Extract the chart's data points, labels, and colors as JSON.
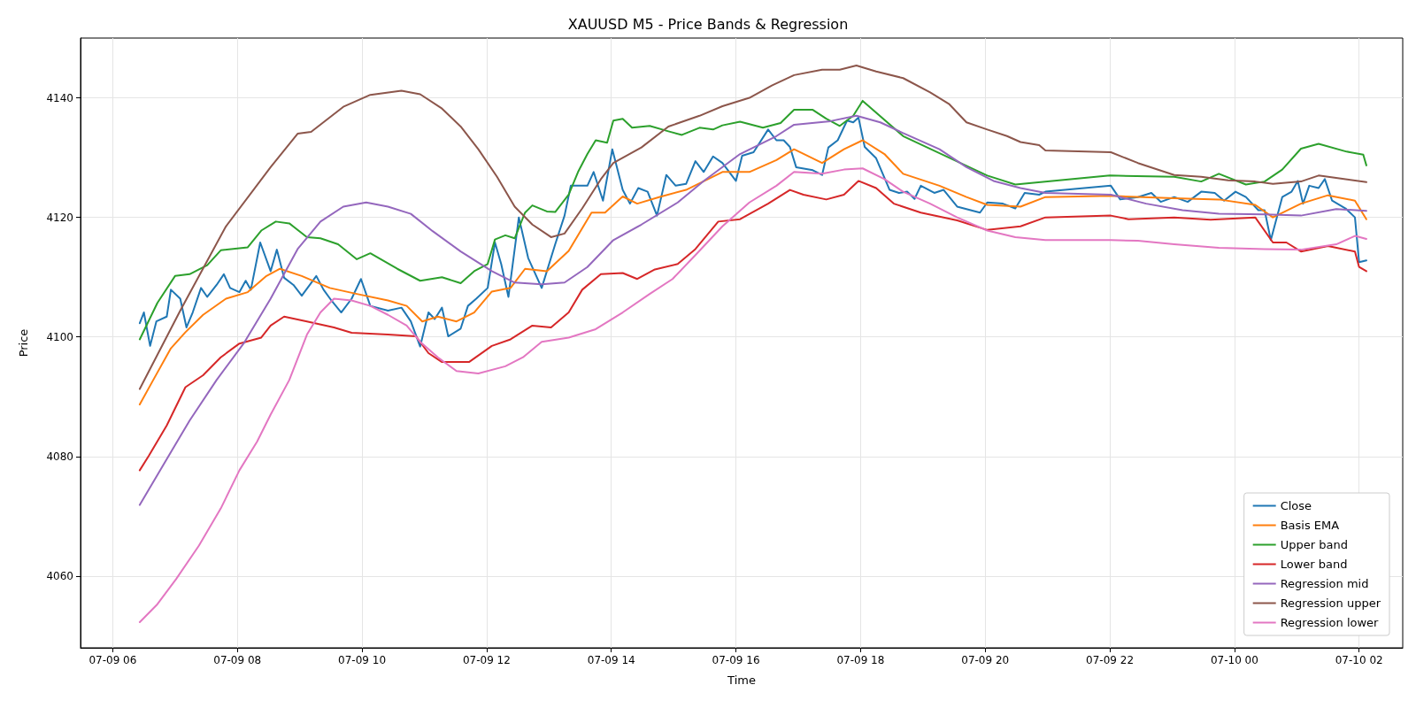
{
  "chart_data": {
    "type": "line",
    "title": "XAUUSD M5 - Price Bands & Regression",
    "xlabel": "Time",
    "ylabel": "Price",
    "xlim": [
      "--07-09T05:29",
      "--07-10T02:42"
    ],
    "xticks": [
      {
        "value": "--07-09T06:00",
        "label": "07-09 06"
      },
      {
        "value": "--07-09T08:00",
        "label": "07-09 08"
      },
      {
        "value": "--07-09T10:00",
        "label": "07-09 10"
      },
      {
        "value": "--07-09T12:00",
        "label": "07-09 12"
      },
      {
        "value": "--07-09T14:00",
        "label": "07-09 14"
      },
      {
        "value": "--07-09T16:00",
        "label": "07-09 16"
      },
      {
        "value": "--07-09T18:00",
        "label": "07-09 18"
      },
      {
        "value": "--07-09T20:00",
        "label": "07-09 20"
      },
      {
        "value": "--07-09T22:00",
        "label": "07-09 22"
      },
      {
        "value": "--07-10T00:00",
        "label": "07-10 00"
      },
      {
        "value": "--07-10T02:00",
        "label": "07-10 02"
      }
    ],
    "ylim": [
      4048,
      4150
    ],
    "yticks": [
      4060,
      4080,
      4100,
      4120,
      4140
    ],
    "grid": true,
    "legend": "bottom right",
    "series": [
      {
        "name": "Close",
        "color": "#1f77b4",
        "x": [
          "--07-09T06:26",
          "--07-09T06:30",
          "--07-09T06:36",
          "--07-09T06:42",
          "--07-09T06:52",
          "--07-09T06:56",
          "--07-09T07:05",
          "--07-09T07:11",
          "--07-09T07:17",
          "--07-09T07:25",
          "--07-09T07:31",
          "--07-09T07:40",
          "--07-09T07:47",
          "--07-09T07:53",
          "--07-09T08:02",
          "--07-09T08:08",
          "--07-09T08:13",
          "--07-09T08:22",
          "--07-09T08:32",
          "--07-09T08:38",
          "--07-09T08:45",
          "--07-09T08:54",
          "--07-09T09:02",
          "--07-09T09:16",
          "--07-09T09:23",
          "--07-09T09:31",
          "--07-09T09:40",
          "--07-09T09:50",
          "--07-09T09:59",
          "--07-09T10:08",
          "--07-09T10:25",
          "--07-09T10:38",
          "--07-09T10:47",
          "--07-09T10:56",
          "--07-09T11:04",
          "--07-09T11:10",
          "--07-09T11:17",
          "--07-09T11:23",
          "--07-09T11:35",
          "--07-09T11:42",
          "--07-09T11:50",
          "--07-09T12:01",
          "--07-09T12:08",
          "--07-09T12:14",
          "--07-09T12:21",
          "--07-09T12:31",
          "--07-09T12:40",
          "--07-09T12:53",
          "--07-09T13:06",
          "--07-09T13:15",
          "--07-09T13:21",
          "--07-09T13:37",
          "--07-09T13:43",
          "--07-09T13:52",
          "--07-09T14:01",
          "--07-09T14:11",
          "--07-09T14:18",
          "--07-09T14:26",
          "--07-09T14:35",
          "--07-09T14:44",
          "--07-09T14:53",
          "--07-09T15:02",
          "--07-09T15:12",
          "--07-09T15:21",
          "--07-09T15:29",
          "--07-09T15:38",
          "--07-09T15:47",
          "--07-09T16:00",
          "--07-09T16:06",
          "--07-09T16:17",
          "--07-09T16:31",
          "--07-09T16:39",
          "--07-09T16:46",
          "--07-09T16:52",
          "--07-09T16:58",
          "--07-09T17:14",
          "--07-09T17:23",
          "--07-09T17:29",
          "--07-09T17:38",
          "--07-09T17:47",
          "--07-09T17:53",
          "--07-09T17:58",
          "--07-09T18:04",
          "--07-09T18:15",
          "--07-09T18:28",
          "--07-09T18:37",
          "--07-09T18:45",
          "--07-09T18:52",
          "--07-09T18:58",
          "--07-09T19:11",
          "--07-09T19:20",
          "--07-09T19:33",
          "--07-09T19:46",
          "--07-09T19:55",
          "--07-09T20:02",
          "--07-09T20:17",
          "--07-09T20:29",
          "--07-09T20:38",
          "--07-09T20:52",
          "--07-09T20:58",
          "--07-09T22:01",
          "--07-09T22:10",
          "--07-09T22:27",
          "--07-09T22:40",
          "--07-09T22:49",
          "--07-09T23:02",
          "--07-09T23:15",
          "--07-09T23:28",
          "--07-09T23:41",
          "--07-09T23:50",
          "--07-10T00:01",
          "--07-10T00:11",
          "--07-10T00:23",
          "--07-10T00:29",
          "--07-10T00:35",
          "--07-10T00:46",
          "--07-10T00:55",
          "--07-10T01:01",
          "--07-10T01:06",
          "--07-10T01:12",
          "--07-10T01:21",
          "--07-10T01:27",
          "--07-10T01:34",
          "--07-10T01:47",
          "--07-10T01:56",
          "--07-10T02:00",
          "--07-10T02:07"
        ],
        "values": [
          4102.3,
          4104.1,
          4098.5,
          4102.6,
          4103.4,
          4107.9,
          4106.4,
          4101.6,
          4104.1,
          4108.2,
          4106.7,
          4108.7,
          4110.5,
          4108.2,
          4107.5,
          4109.4,
          4107.9,
          4115.8,
          4111.0,
          4114.6,
          4109.9,
          4108.7,
          4106.9,
          4110.2,
          4107.9,
          4106.0,
          4104.1,
          4106.4,
          4109.7,
          4105.2,
          4104.4,
          4104.9,
          4102.6,
          4098.4,
          4104.1,
          4103.0,
          4104.9,
          4100.1,
          4101.4,
          4105.2,
          4106.4,
          4108.2,
          4115.8,
          4112.2,
          4106.7,
          4120.0,
          4113.2,
          4108.2,
          4115.5,
          4120.3,
          4125.3,
          4125.3,
          4127.6,
          4122.8,
          4131.4,
          4124.6,
          4122.3,
          4124.9,
          4124.3,
          4120.3,
          4127.1,
          4125.3,
          4125.6,
          4129.4,
          4127.6,
          4130.2,
          4129.1,
          4126.1,
          4130.3,
          4130.9,
          4134.7,
          4132.9,
          4132.9,
          4131.8,
          4128.4,
          4127.9,
          4127.1,
          4131.7,
          4132.9,
          4136.2,
          4135.9,
          4136.7,
          4131.8,
          4129.9,
          4124.6,
          4124.1,
          4124.3,
          4123.1,
          4125.3,
          4124.1,
          4124.6,
          4121.8,
          4121.2,
          4120.8,
          4122.5,
          4122.3,
          4121.5,
          4124.1,
          4123.8,
          4124.3,
          4125.3,
          4123.0,
          4123.4,
          4124.1,
          4122.6,
          4123.4,
          4122.6,
          4124.3,
          4124.1,
          4122.8,
          4124.3,
          4123.4,
          4121.2,
          4121.2,
          4116.2,
          4123.4,
          4124.3,
          4126.1,
          4122.3,
          4125.3,
          4124.9,
          4126.4,
          4122.8,
          4121.5,
          4120.0,
          4112.5,
          4112.8
        ]
      },
      {
        "name": "Basis EMA",
        "color": "#ff7f0e",
        "x": [
          "--07-09T06:26",
          "--07-09T06:39",
          "--07-09T06:56",
          "--07-09T07:10",
          "--07-09T07:27",
          "--07-09T07:49",
          "--07-09T08:10",
          "--07-09T08:28",
          "--07-09T08:41",
          "--07-09T09:02",
          "--07-09T09:29",
          "--07-09T09:55",
          "--07-09T10:25",
          "--07-09T10:43",
          "--07-09T10:58",
          "--07-09T11:13",
          "--07-09T11:31",
          "--07-09T11:48",
          "--07-09T12:05",
          "--07-09T12:23",
          "--07-09T12:37",
          "--07-09T12:58",
          "--07-09T13:19",
          "--07-09T13:41",
          "--07-09T13:54",
          "--07-09T14:11",
          "--07-09T14:25",
          "--07-09T14:46",
          "--07-09T15:12",
          "--07-09T15:47",
          "--07-09T16:13",
          "--07-09T16:39",
          "--07-09T16:56",
          "--07-09T17:23",
          "--07-09T17:44",
          "--07-09T18:02",
          "--07-09T18:23",
          "--07-09T18:41",
          "--07-09T19:16",
          "--07-09T19:42",
          "--07-09T20:02",
          "--07-09T20:34",
          "--07-09T20:58",
          "--07-09T22:01",
          "--07-09T23:02",
          "--07-09T23:45",
          "--07-10T00:20",
          "--07-10T00:37",
          "--07-10T01:04",
          "--07-10T01:30",
          "--07-10T01:56",
          "--07-10T02:07"
        ],
        "values": [
          4088.7,
          4092.8,
          4098.1,
          4100.8,
          4103.7,
          4106.4,
          4107.5,
          4110.2,
          4111.4,
          4110.2,
          4108.2,
          4107.2,
          4106.1,
          4105.2,
          4102.6,
          4103.4,
          4102.6,
          4104.1,
          4107.6,
          4108.2,
          4111.4,
          4111.0,
          4114.4,
          4120.8,
          4120.8,
          4123.5,
          4122.3,
          4123.4,
          4124.6,
          4127.6,
          4127.6,
          4129.6,
          4131.4,
          4129.1,
          4131.4,
          4132.9,
          4130.6,
          4127.3,
          4125.3,
          4123.4,
          4122.1,
          4121.8,
          4123.4,
          4123.6,
          4123.2,
          4123.0,
          4122.1,
          4120.0,
          4122.3,
          4123.7,
          4122.8,
          4119.7
        ]
      },
      {
        "name": "Upper band",
        "color": "#2ca02c",
        "x": [
          "--07-09T06:26",
          "--07-09T06:43",
          "--07-09T07:00",
          "--07-09T07:14",
          "--07-09T07:31",
          "--07-09T07:44",
          "--07-09T08:10",
          "--07-09T08:23",
          "--07-09T08:37",
          "--07-09T08:50",
          "--07-09T09:07",
          "--07-09T09:20",
          "--07-09T09:37",
          "--07-09T09:55",
          "--07-09T10:08",
          "--07-09T10:34",
          "--07-09T10:56",
          "--07-09T11:17",
          "--07-09T11:35",
          "--07-09T11:48",
          "--07-09T12:01",
          "--07-09T12:08",
          "--07-09T12:18",
          "--07-09T12:27",
          "--07-09T12:37",
          "--07-09T12:44",
          "--07-09T12:58",
          "--07-09T13:06",
          "--07-09T13:19",
          "--07-09T13:28",
          "--07-09T13:37",
          "--07-09T13:45",
          "--07-09T13:56",
          "--07-09T14:02",
          "--07-09T14:11",
          "--07-09T14:20",
          "--07-09T14:37",
          "--07-09T14:55",
          "--07-09T15:08",
          "--07-09T15:25",
          "--07-09T15:38",
          "--07-09T15:47",
          "--07-09T16:04",
          "--07-09T16:26",
          "--07-09T16:43",
          "--07-09T16:56",
          "--07-09T17:14",
          "--07-09T17:27",
          "--07-09T17:40",
          "--07-09T17:53",
          "--07-09T18:02",
          "--07-09T18:41",
          "--07-09T20:02",
          "--07-09T20:29",
          "--07-09T22:00",
          "--07-09T23:02",
          "--07-09T23:28",
          "--07-09T23:45",
          "--07-10T00:11",
          "--07-10T00:29",
          "--07-10T00:46",
          "--07-10T01:04",
          "--07-10T01:21",
          "--07-10T01:48",
          "--07-10T02:04",
          "--07-10T02:07"
        ],
        "values": [
          4099.6,
          4105.7,
          4110.2,
          4110.5,
          4112.0,
          4114.5,
          4115.0,
          4117.8,
          4119.3,
          4119.0,
          4116.7,
          4116.5,
          4115.5,
          4113.0,
          4114.0,
          4111.4,
          4109.4,
          4110.0,
          4109.0,
          4111.0,
          4112.2,
          4116.3,
          4117.0,
          4116.5,
          4120.8,
          4122.0,
          4121.0,
          4120.9,
          4123.8,
          4127.6,
          4130.6,
          4132.9,
          4132.5,
          4136.2,
          4136.5,
          4135.0,
          4135.3,
          4134.4,
          4133.8,
          4135.0,
          4134.7,
          4135.4,
          4136.0,
          4135.0,
          4135.8,
          4138.0,
          4138.0,
          4136.5,
          4135.3,
          4137.0,
          4139.5,
          4133.6,
          4127.0,
          4125.5,
          4127.0,
          4126.8,
          4126.0,
          4127.3,
          4125.5,
          4126.0,
          4128.0,
          4131.5,
          4132.3,
          4131.0,
          4130.5,
          4128.7
        ]
      },
      {
        "name": "Lower band",
        "color": "#d62728",
        "x": [
          "--07-09T06:26",
          "--07-09T06:35",
          "--07-09T06:52",
          "--07-09T07:10",
          "--07-09T07:27",
          "--07-09T07:44",
          "--07-09T08:02",
          "--07-09T08:23",
          "--07-09T08:32",
          "--07-09T08:45",
          "--07-09T09:07",
          "--07-09T09:33",
          "--07-09T09:50",
          "--07-09T10:25",
          "--07-09T10:52",
          "--07-09T11:04",
          "--07-09T11:17",
          "--07-09T11:43",
          "--07-09T12:05",
          "--07-09T12:23",
          "--07-09T12:44",
          "--07-09T13:02",
          "--07-09T13:19",
          "--07-09T13:32",
          "--07-09T13:50",
          "--07-09T14:11",
          "--07-09T14:25",
          "--07-09T14:42",
          "--07-09T15:04",
          "--07-09T15:21",
          "--07-09T15:43",
          "--07-09T16:04",
          "--07-09T16:31",
          "--07-09T16:52",
          "--07-09T17:05",
          "--07-09T17:27",
          "--07-09T17:44",
          "--07-09T17:58",
          "--07-09T18:15",
          "--07-09T18:32",
          "--07-09T18:58",
          "--07-09T19:33",
          "--07-09T20:02",
          "--07-09T20:34",
          "--07-09T20:58",
          "--07-09T22:01",
          "--07-09T22:18",
          "--07-09T23:02",
          "--07-09T23:37",
          "--07-10T00:20",
          "--07-10T00:37",
          "--07-10T00:50",
          "--07-10T01:04",
          "--07-10T01:30",
          "--07-10T01:56",
          "--07-10T02:00",
          "--07-10T02:07"
        ],
        "values": [
          4077.7,
          4080.2,
          4085.2,
          4091.6,
          4093.6,
          4096.6,
          4098.9,
          4099.9,
          4101.9,
          4103.4,
          4102.6,
          4101.6,
          4100.7,
          4100.4,
          4100.1,
          4097.3,
          4095.8,
          4095.8,
          4098.5,
          4099.6,
          4101.9,
          4101.6,
          4104.1,
          4107.9,
          4110.5,
          4110.7,
          4109.7,
          4111.3,
          4112.2,
          4114.7,
          4119.3,
          4119.7,
          4122.3,
          4124.6,
          4123.8,
          4123.0,
          4123.8,
          4126.1,
          4124.9,
          4122.3,
          4120.8,
          4119.5,
          4117.9,
          4118.5,
          4120.0,
          4120.3,
          4119.7,
          4120.0,
          4119.6,
          4120.0,
          4115.8,
          4115.8,
          4114.3,
          4115.2,
          4114.3,
          4111.7,
          4111.0
        ]
      },
      {
        "name": "Regression mid",
        "color": "#9467bd",
        "x": [
          "--07-09T06:26",
          "--07-09T06:48",
          "--07-09T07:14",
          "--07-09T07:40",
          "--07-09T08:06",
          "--07-09T08:32",
          "--07-09T08:58",
          "--07-09T09:20",
          "--07-09T09:42",
          "--07-09T10:04",
          "--07-09T10:25",
          "--07-09T10:47",
          "--07-09T11:08",
          "--07-09T11:35",
          "--07-09T12:05",
          "--07-09T12:27",
          "--07-09T12:53",
          "--07-09T13:15",
          "--07-09T13:37",
          "--07-09T14:02",
          "--07-09T14:29",
          "--07-09T15:04",
          "--07-09T15:29",
          "--07-09T16:04",
          "--07-09T16:39",
          "--07-09T16:56",
          "--07-09T17:31",
          "--07-09T17:56",
          "--07-09T18:19",
          "--07-09T18:41",
          "--07-09T19:16",
          "--07-09T19:42",
          "--07-09T20:08",
          "--07-09T20:34",
          "--07-09T20:58",
          "--07-09T22:01",
          "--07-09T22:35",
          "--07-09T23:10",
          "--07-09T23:45",
          "--07-10T00:29",
          "--07-10T01:04",
          "--07-10T01:38",
          "--07-10T02:07"
        ],
        "values": [
          4071.9,
          4078.4,
          4086.0,
          4092.8,
          4098.9,
          4106.4,
          4114.7,
          4119.3,
          4121.8,
          4122.5,
          4121.8,
          4120.6,
          4117.7,
          4114.3,
          4111.0,
          4109.1,
          4108.8,
          4109.1,
          4111.7,
          4116.2,
          4118.8,
          4122.5,
          4126.1,
          4130.6,
          4133.6,
          4135.5,
          4136.1,
          4137.0,
          4135.9,
          4134.1,
          4131.4,
          4128.4,
          4126.1,
          4124.9,
          4124.1,
          4123.8,
          4122.3,
          4121.2,
          4120.6,
          4120.5,
          4120.3,
          4121.4,
          4121.1
        ]
      },
      {
        "name": "Regression upper",
        "color": "#8c564b",
        "x": [
          "--07-09T06:26",
          "--07-09T07:05",
          "--07-09T07:49",
          "--07-09T08:32",
          "--07-09T08:58",
          "--07-09T09:11",
          "--07-09T09:42",
          "--07-09T10:08",
          "--07-09T10:38",
          "--07-09T10:56",
          "--07-09T11:17",
          "--07-09T11:35",
          "--07-09T11:52",
          "--07-09T12:10",
          "--07-09T12:27",
          "--07-09T12:44",
          "--07-09T13:02",
          "--07-09T13:15",
          "--07-09T13:32",
          "--07-09T13:50",
          "--07-09T14:02",
          "--07-09T14:29",
          "--07-09T14:55",
          "--07-09T15:25",
          "--07-09T15:47",
          "--07-09T16:13",
          "--07-09T16:35",
          "--07-09T16:56",
          "--07-09T17:23",
          "--07-09T17:40",
          "--07-09T17:56",
          "--07-09T18:15",
          "--07-09T18:41",
          "--07-09T19:07",
          "--07-09T19:25",
          "--07-09T19:42",
          "--07-09T20:02",
          "--07-09T20:21",
          "--07-09T20:34",
          "--07-09T20:52",
          "--07-09T20:58",
          "--07-09T22:01",
          "--07-09T22:27",
          "--07-09T23:02",
          "--07-09T23:28",
          "--07-09T23:54",
          "--07-10T00:20",
          "--07-10T00:37",
          "--07-10T01:04",
          "--07-10T01:21",
          "--07-10T01:47",
          "--07-10T02:07"
        ],
        "values": [
          4091.3,
          4104.4,
          4118.5,
          4128.4,
          4134.0,
          4134.3,
          4138.5,
          4140.5,
          4141.2,
          4140.6,
          4138.2,
          4135.2,
          4131.4,
          4126.8,
          4121.8,
          4118.8,
          4116.7,
          4117.3,
          4121.5,
          4126.4,
          4129.1,
          4131.7,
          4135.2,
          4137.0,
          4138.6,
          4140.0,
          4142.1,
          4143.8,
          4144.7,
          4144.7,
          4145.4,
          4144.4,
          4143.3,
          4140.9,
          4139.0,
          4135.9,
          4134.7,
          4133.6,
          4132.6,
          4132.1,
          4131.2,
          4130.9,
          4129.1,
          4127.1,
          4126.8,
          4126.2,
          4126.0,
          4125.6,
          4126.0,
          4127.0,
          4126.4,
          4125.9
        ]
      },
      {
        "name": "Regression lower",
        "color": "#e377c2",
        "x": [
          "--07-09T06:26",
          "--07-09T06:43",
          "--07-09T07:01",
          "--07-09T07:23",
          "--07-09T07:44",
          "--07-09T08:02",
          "--07-09T08:19",
          "--07-09T08:32",
          "--07-09T08:50",
          "--07-09T09:07",
          "--07-09T09:20",
          "--07-09T09:33",
          "--07-09T09:50",
          "--07-09T10:08",
          "--07-09T10:25",
          "--07-09T10:43",
          "--07-09T10:56",
          "--07-09T11:13",
          "--07-09T11:31",
          "--07-09T11:52",
          "--07-09T12:18",
          "--07-09T12:35",
          "--07-09T12:53",
          "--07-09T13:19",
          "--07-09T13:45",
          "--07-09T14:11",
          "--07-09T14:37",
          "--07-09T14:59",
          "--07-09T15:21",
          "--07-09T15:47",
          "--07-09T16:13",
          "--07-09T16:39",
          "--07-09T16:56",
          "--07-09T17:23",
          "--07-09T17:44",
          "--07-09T18:02",
          "--07-09T18:23",
          "--07-09T18:41",
          "--07-09T19:07",
          "--07-09T19:33",
          "--07-09T20:02",
          "--07-09T20:29",
          "--07-09T20:58",
          "--07-09T22:01",
          "--07-09T22:27",
          "--07-09T23:02",
          "--07-09T23:45",
          "--07-10T00:29",
          "--07-10T01:04",
          "--07-10T01:38",
          "--07-10T01:56",
          "--07-10T02:07"
        ],
        "values": [
          4052.3,
          4055.3,
          4059.5,
          4065.1,
          4071.3,
          4077.7,
          4082.5,
          4087.0,
          4092.8,
          4100.4,
          4104.1,
          4106.4,
          4106.1,
          4105.2,
          4103.7,
          4101.9,
          4099.2,
          4096.6,
          4094.3,
          4093.9,
          4095.1,
          4096.6,
          4099.2,
          4099.9,
          4101.3,
          4104.1,
          4107.2,
          4109.7,
          4113.7,
          4118.5,
          4122.5,
          4125.3,
          4127.6,
          4127.3,
          4128.0,
          4128.2,
          4126.4,
          4124.3,
          4122.3,
          4120.0,
          4117.8,
          4116.7,
          4116.2,
          4116.2,
          4116.1,
          4115.5,
          4114.9,
          4114.7,
          4114.6,
          4115.5,
          4116.9,
          4116.4
        ]
      }
    ]
  }
}
